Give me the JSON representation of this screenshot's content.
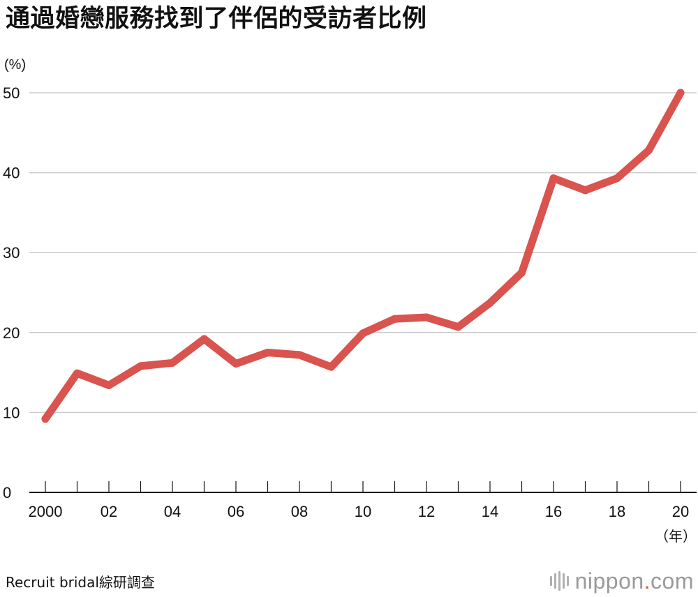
{
  "title": "通過婚戀服務找到了伴侶的受訪者比例",
  "source": "Recruit bridal綜研調查",
  "brand": {
    "name": "nippon",
    "dot": ".",
    "suffix": "com",
    "icon": "nippon-logo-bars-icon"
  },
  "colors": {
    "line": "#d9534f",
    "grid": "#cccccc",
    "axis": "#111111",
    "brand_text": "#9a9a9a"
  },
  "chart_data": {
    "type": "line",
    "title": "",
    "ylabel": "(%)",
    "xlabel": "（年）",
    "x": [
      2000,
      2001,
      2002,
      2003,
      2004,
      2005,
      2006,
      2007,
      2008,
      2009,
      2010,
      2011,
      2012,
      2013,
      2014,
      2015,
      2016,
      2017,
      2018,
      2019,
      2020
    ],
    "values": [
      9.2,
      14.9,
      13.4,
      15.8,
      16.2,
      19.2,
      16.1,
      17.5,
      17.2,
      15.7,
      19.9,
      21.7,
      21.9,
      20.7,
      23.7,
      27.5,
      39.3,
      37.8,
      39.3,
      42.8,
      50.0
    ],
    "ylim": [
      0,
      50
    ],
    "yticks": [
      0,
      10,
      20,
      30,
      40,
      50
    ],
    "ytick_labels": [
      "0",
      "10",
      "20",
      "30",
      "40",
      "50"
    ],
    "xtick_labels": [
      {
        "x": 2000,
        "label": "2000"
      },
      {
        "x": 2002,
        "label": "02"
      },
      {
        "x": 2004,
        "label": "04"
      },
      {
        "x": 2006,
        "label": "06"
      },
      {
        "x": 2008,
        "label": "08"
      },
      {
        "x": 2010,
        "label": "10"
      },
      {
        "x": 2012,
        "label": "12"
      },
      {
        "x": 2014,
        "label": "14"
      },
      {
        "x": 2016,
        "label": "16"
      },
      {
        "x": 2018,
        "label": "18"
      },
      {
        "x": 2020,
        "label": "20"
      }
    ],
    "grid": true,
    "legend": "none"
  }
}
